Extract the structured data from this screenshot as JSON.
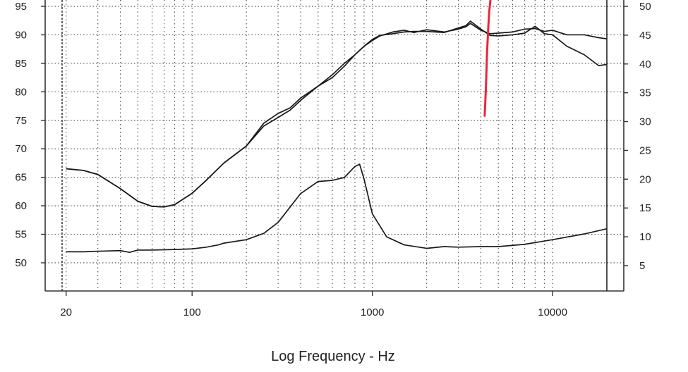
{
  "chart_data": {
    "type": "line",
    "xlabel": "Log Frequency - Hz",
    "x_scale": "log",
    "xlim": [
      18,
      20000
    ],
    "x_ticks": [
      20,
      100,
      1000,
      10000
    ],
    "x_tick_labels": [
      "20",
      "100",
      "1000",
      "10000"
    ],
    "ylim": [
      45,
      96
    ],
    "y_ticks": [
      95,
      90,
      85,
      80,
      75,
      70,
      65,
      60,
      55,
      50
    ],
    "y_tick_labels": [
      "95",
      "90",
      "85",
      "80",
      "75",
      "70",
      "65",
      "60",
      "55",
      "50"
    ],
    "y2lim": [
      0,
      51
    ],
    "y2_ticks": [
      50,
      45,
      40,
      35,
      30,
      25,
      20,
      15,
      10,
      5
    ],
    "y2_tick_labels": [
      "50",
      "45",
      "40",
      "35",
      "30",
      "25",
      "20",
      "15",
      "10",
      "5"
    ],
    "grid": true,
    "colors": {
      "line": "#1a1a1a",
      "annotation": "#e8283c",
      "grid": "#555555"
    },
    "series": [
      {
        "axis": "left",
        "x": [
          20,
          25,
          30,
          40,
          50,
          60,
          70,
          80,
          100,
          120,
          150,
          200,
          250,
          300,
          350,
          400,
          500,
          600,
          700,
          800,
          900,
          1000,
          1100,
          1300,
          1500,
          1700,
          2000,
          2500,
          3000,
          3300,
          3500,
          4000,
          4500,
          5000,
          6000,
          7000,
          8000,
          9000,
          10000,
          12000,
          15000,
          18000,
          20000
        ],
        "y": [
          66.5,
          66.2,
          65.5,
          63,
          60.8,
          59.9,
          59.8,
          60.2,
          62.2,
          64.5,
          67.5,
          70.5,
          74.5,
          76.2,
          77.2,
          78.9,
          81,
          83,
          85,
          86.5,
          88,
          89,
          89.8,
          90.5,
          90.8,
          90.4,
          90.9,
          90.5,
          91,
          91.4,
          92,
          90.8,
          90.2,
          90.3,
          90.5,
          91,
          91.1,
          90.6,
          90.8,
          90,
          90,
          89.5,
          89.3
        ]
      },
      {
        "axis": "left",
        "x": [
          20,
          25,
          30,
          40,
          50,
          60,
          70,
          80,
          100,
          120,
          150,
          200,
          250,
          300,
          350,
          400,
          500,
          600,
          700,
          800,
          900,
          1000,
          1100,
          1300,
          1500,
          1700,
          2000,
          2500,
          3000,
          3300,
          3500,
          4000,
          4500,
          5000,
          6000,
          7000,
          8000,
          9000,
          10000,
          12000,
          15000,
          18000,
          20000
        ],
        "y": [
          66.5,
          66.2,
          65.5,
          63,
          60.8,
          59.9,
          59.8,
          60.2,
          62.2,
          64.5,
          67.5,
          70.5,
          74,
          75.5,
          76.8,
          78.5,
          81,
          82.5,
          84.5,
          86.5,
          88,
          89.2,
          89.9,
          90.2,
          90.5,
          90.6,
          90.6,
          90.4,
          91.2,
          91.6,
          92.4,
          91,
          89.9,
          89.8,
          90,
          90.3,
          91.5,
          90.2,
          90,
          88,
          86.5,
          84.6,
          84.8
        ]
      },
      {
        "axis": "right",
        "x": [
          20,
          25,
          30,
          40,
          45,
          50,
          60,
          80,
          100,
          120,
          140,
          150,
          200,
          250,
          300,
          400,
          500,
          600,
          700,
          800,
          850,
          900,
          1000,
          1200,
          1500,
          2000,
          2500,
          3000,
          4000,
          5000,
          7000,
          10000,
          15000,
          20000
        ],
        "y": [
          7.4,
          7.4,
          7.5,
          7.6,
          7.3,
          7.7,
          7.7,
          7.8,
          7.9,
          8.2,
          8.6,
          8.9,
          9.5,
          10.6,
          12.5,
          17.5,
          19.6,
          19.8,
          20.3,
          22.2,
          22.6,
          20,
          14,
          10,
          8.6,
          8,
          8.3,
          8.2,
          8.3,
          8.3,
          8.7,
          9.5,
          10.5,
          11.4
        ]
      }
    ],
    "annotation": {
      "type": "hand-drawn-line",
      "x": [
        4200,
        4230,
        4270,
        4300,
        4330,
        4370,
        4400,
        4450,
        4550
      ],
      "y": [
        75.8,
        78,
        81,
        84,
        87,
        89.5,
        91.5,
        94,
        97
      ]
    }
  }
}
